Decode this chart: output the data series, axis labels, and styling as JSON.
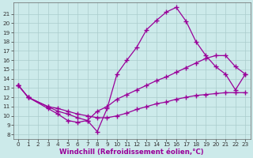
{
  "background_color": "#cceaea",
  "grid_color": "#aacccc",
  "line_color": "#990099",
  "marker": "+",
  "markersize": 4,
  "linewidth": 0.9,
  "markeredgewidth": 1.0,
  "xlabel": "Windchill (Refroidissement éolien,°C)",
  "xlabel_fontsize": 6.2,
  "tick_fontsize": 5.2,
  "xlim": [
    -0.5,
    23.5
  ],
  "ylim": [
    7.5,
    22.2
  ],
  "xticks": [
    0,
    1,
    2,
    3,
    4,
    5,
    6,
    7,
    8,
    9,
    10,
    11,
    12,
    13,
    14,
    15,
    16,
    17,
    18,
    19,
    20,
    21,
    22,
    23
  ],
  "yticks": [
    8,
    9,
    10,
    11,
    12,
    13,
    14,
    15,
    16,
    17,
    18,
    19,
    20,
    21
  ],
  "curve1_x": [
    0,
    1,
    3,
    4,
    5,
    6,
    7,
    8,
    9,
    10,
    11,
    12,
    13,
    14,
    15,
    16,
    17,
    18,
    19,
    20,
    21,
    22,
    23
  ],
  "curve1_y": [
    13.3,
    12.0,
    10.8,
    10.2,
    9.5,
    9.3,
    9.5,
    8.3,
    10.8,
    14.5,
    16.0,
    17.4,
    19.3,
    20.3,
    21.2,
    21.7,
    20.2,
    18.0,
    16.5,
    15.3,
    14.5,
    12.8,
    14.5
  ],
  "curve2_x": [
    0,
    1,
    3,
    4,
    5,
    6,
    7,
    8,
    9,
    10,
    11,
    12,
    13,
    14,
    15,
    16,
    17,
    18,
    19,
    20,
    21,
    22,
    23
  ],
  "curve2_y": [
    13.3,
    12.0,
    11.0,
    10.5,
    10.2,
    9.8,
    9.5,
    10.5,
    11.0,
    11.8,
    12.3,
    12.8,
    13.3,
    13.8,
    14.2,
    14.7,
    15.2,
    15.7,
    16.2,
    16.5,
    16.5,
    15.3,
    14.5
  ],
  "curve3_x": [
    0,
    1,
    3,
    4,
    5,
    6,
    7,
    8,
    9,
    10,
    11,
    12,
    13,
    14,
    15,
    16,
    17,
    18,
    19,
    20,
    21,
    22,
    23
  ],
  "curve3_y": [
    13.3,
    12.0,
    11.0,
    10.8,
    10.5,
    10.2,
    10.0,
    9.8,
    9.8,
    10.0,
    10.3,
    10.7,
    11.0,
    11.3,
    11.5,
    11.8,
    12.0,
    12.2,
    12.3,
    12.4,
    12.5,
    12.5,
    12.5
  ]
}
